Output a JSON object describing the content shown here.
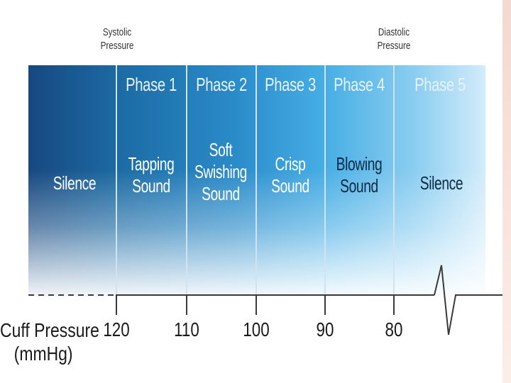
{
  "top_labels": {
    "systolic": [
      "Systolic",
      "Pressure"
    ],
    "diastolic": [
      "Diastolic",
      "Pressure"
    ]
  },
  "zones": [
    {
      "title": "",
      "sound": [
        "Silence"
      ]
    },
    {
      "title": "Phase 1",
      "sound": [
        "Tapping",
        "Sound"
      ]
    },
    {
      "title": "Phase 2",
      "sound": [
        "Soft",
        "Swishing",
        "Sound"
      ]
    },
    {
      "title": "Phase 3",
      "sound": [
        "Crisp",
        "Sound"
      ]
    },
    {
      "title": "Phase 4",
      "sound": [
        "Blowing",
        "Sound"
      ]
    },
    {
      "title": "Phase 5",
      "sound": [
        "Silence"
      ]
    }
  ],
  "axis": {
    "title": [
      "Cuff Pressure",
      "(mmHg)"
    ],
    "ticks": [
      "120",
      "110",
      "100",
      "90",
      "80"
    ]
  },
  "colors": {
    "panel_dark": "#17487f",
    "panel_light": "#d3ecfa",
    "phase_title": "#e6f2fb",
    "sound_text": "#0e2a45",
    "axis_line": "#3a3a3a",
    "accent_strip": "#f3d9cf"
  }
}
